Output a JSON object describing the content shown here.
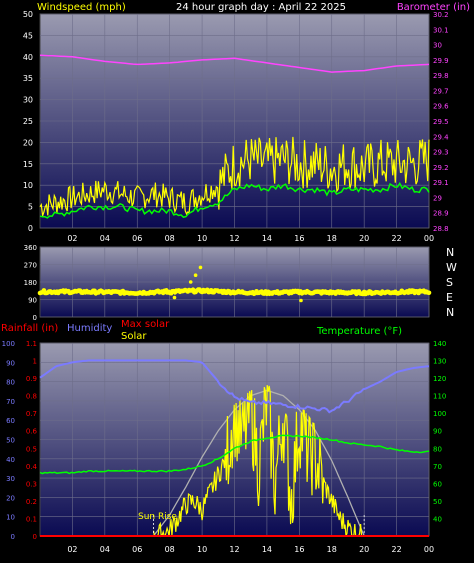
{
  "colors": {
    "background": "#000000",
    "plot_top": "#9a9ab0",
    "plot_bottom": "#0a0a52",
    "grid": "#6e6e8a",
    "wind": "#ffff00",
    "gust_line": "#00ff00",
    "barometer": "#ff44ff",
    "humidity": "#7b7bff",
    "temperature": "#00ff00",
    "solar": "#ffff00",
    "max_solar": "#b0b0b0",
    "rain": "#ff0000",
    "white_text": "#ffffff"
  },
  "header": {
    "windspeed_label": "Windspeed (mph)",
    "title": "24 hour graph day : April 22 2025",
    "barometer_label": "Barometer (in)"
  },
  "panel3_header": {
    "rainfall_label": "Rainfall (in)",
    "humidity_label": "Humidity",
    "max_solar_label": "Max solar",
    "solar_label": "Solar",
    "temperature_label": "Temperature (°F)"
  },
  "direction_labels": [
    "N",
    "W",
    "S",
    "E",
    "N"
  ],
  "sunrise_label": "Sun Rise",
  "chart_data": [
    {
      "type": "line",
      "x_ticks": [
        "02",
        "04",
        "06",
        "08",
        "10",
        "12",
        "14",
        "16",
        "18",
        "20",
        "22",
        "00"
      ],
      "y_left_ticks": [
        "0",
        "5",
        "10",
        "15",
        "20",
        "25",
        "30",
        "35",
        "40",
        "45",
        "50"
      ],
      "y_right_ticks": [
        "28.8",
        "28.9",
        "29",
        "29.1",
        "29.2",
        "29.3",
        "29.4",
        "29.5",
        "29.6",
        "29.7",
        "29.8",
        "29.9",
        "30",
        "30.1",
        "30.2"
      ],
      "ylim_left": [
        0,
        50
      ],
      "ylim_right": [
        28.8,
        30.2
      ],
      "series": [
        {
          "name": "Windspeed (mph)",
          "x": [
            0,
            1,
            2,
            3,
            4,
            5,
            6,
            7,
            8,
            9,
            10,
            11,
            12,
            13,
            14,
            15,
            16,
            17,
            18,
            19,
            20,
            21,
            22,
            23,
            24
          ],
          "values": [
            5,
            6,
            7,
            8,
            9,
            8,
            7,
            8,
            7,
            6,
            8,
            10,
            15,
            16,
            15,
            16,
            15,
            15,
            14,
            15,
            14,
            15,
            15,
            15,
            16
          ]
        },
        {
          "name": "Wind (avg)",
          "x": [
            0,
            1,
            2,
            3,
            4,
            5,
            6,
            7,
            8,
            9,
            10,
            11,
            12,
            13,
            14,
            15,
            16,
            17,
            18,
            19,
            20,
            21,
            22,
            23,
            24
          ],
          "values": [
            3,
            3,
            4,
            5,
            5,
            5,
            4,
            4,
            4,
            3,
            5,
            6,
            9,
            10,
            9,
            10,
            9,
            9,
            8,
            9,
            9,
            9,
            10,
            9,
            9
          ]
        },
        {
          "name": "Barometer (in)",
          "x": [
            0,
            2,
            4,
            6,
            8,
            10,
            12,
            14,
            16,
            18,
            20,
            22,
            24
          ],
          "values": [
            29.93,
            29.92,
            29.89,
            29.87,
            29.88,
            29.9,
            29.91,
            29.88,
            29.85,
            29.82,
            29.83,
            29.86,
            29.87
          ]
        }
      ]
    },
    {
      "type": "scatter",
      "x_ticks": [
        "02",
        "04",
        "06",
        "08",
        "10",
        "12",
        "14",
        "16",
        "18",
        "20",
        "22",
        "00"
      ],
      "y_ticks": [
        "0",
        "90",
        "180",
        "270",
        "360"
      ],
      "ylim": [
        0,
        360
      ],
      "series": [
        {
          "name": "Wind direction",
          "x": [
            0,
            2,
            4,
            6,
            8,
            10,
            12,
            14,
            16,
            18,
            20,
            22,
            24
          ],
          "values": [
            130,
            130,
            128,
            125,
            130,
            135,
            128,
            125,
            128,
            126,
            125,
            128,
            130
          ]
        }
      ]
    },
    {
      "type": "line",
      "x_ticks": [
        "02",
        "04",
        "06",
        "08",
        "10",
        "12",
        "14",
        "16",
        "18",
        "20",
        "22",
        "00"
      ],
      "y_left_ticks": [
        "0",
        "10",
        "20",
        "30",
        "40",
        "50",
        "60",
        "70",
        "80",
        "90",
        "100"
      ],
      "y_left2_ticks": [
        "0",
        "0.1",
        "0.2",
        "0.3",
        "0.4",
        "0.5",
        "0.6",
        "0.7",
        "0.8",
        "0.9",
        "1",
        "1.1"
      ],
      "y_right_ticks": [
        "40",
        "50",
        "60",
        "70",
        "80",
        "90",
        "100",
        "110",
        "120",
        "130",
        "140"
      ],
      "ylim_humidity": [
        0,
        100
      ],
      "ylim_rain": [
        0,
        1.1
      ],
      "ylim_temp": [
        30,
        140
      ],
      "series": [
        {
          "name": "Humidity",
          "x": [
            0,
            1,
            2,
            3,
            4,
            5,
            6,
            7,
            8,
            9,
            10,
            11,
            12,
            13,
            14,
            15,
            16,
            17,
            18,
            19,
            20,
            21,
            22,
            23,
            24
          ],
          "values": [
            82,
            88,
            90,
            91,
            91,
            91,
            91,
            91,
            91,
            91,
            90,
            80,
            72,
            69,
            69,
            68,
            67,
            66,
            65,
            70,
            76,
            80,
            85,
            87,
            88
          ]
        },
        {
          "name": "Temperature (°F)",
          "x": [
            0,
            1,
            2,
            3,
            4,
            5,
            6,
            7,
            8,
            9,
            10,
            11,
            12,
            13,
            14,
            15,
            16,
            17,
            18,
            19,
            20,
            21,
            22,
            23,
            24
          ],
          "values": [
            66,
            66,
            66,
            67,
            67,
            67,
            67,
            67,
            67,
            68,
            70,
            74,
            80,
            84,
            86,
            87,
            87,
            86,
            85,
            83,
            82,
            81,
            79,
            78,
            78
          ]
        },
        {
          "name": "Max solar",
          "x": [
            7,
            8,
            9,
            10,
            11,
            12,
            13,
            14,
            15,
            16,
            17,
            18,
            19,
            20
          ],
          "values": [
            0,
            0.12,
            0.28,
            0.45,
            0.6,
            0.72,
            0.8,
            0.83,
            0.8,
            0.72,
            0.6,
            0.43,
            0.22,
            0
          ]
        },
        {
          "name": "Solar",
          "x": [
            7,
            8,
            8.5,
            9,
            9.5,
            10,
            10.5,
            11,
            11.5,
            12,
            12.5,
            13,
            13.5,
            14,
            14.5,
            15,
            15.5,
            16,
            16.5,
            17,
            17.5,
            18,
            18.5,
            19,
            19.5,
            20
          ],
          "values": [
            0,
            0.03,
            0.1,
            0.18,
            0.2,
            0.15,
            0.25,
            0.35,
            0.45,
            0.7,
            0.55,
            0.72,
            0.4,
            0.78,
            0.3,
            0.7,
            0.2,
            0.65,
            0.5,
            0.45,
            0.3,
            0.2,
            0.1,
            0.05,
            0.02,
            0
          ]
        },
        {
          "name": "Rainfall (in)",
          "x": [
            0,
            24
          ],
          "values": [
            0,
            0
          ]
        }
      ]
    }
  ]
}
